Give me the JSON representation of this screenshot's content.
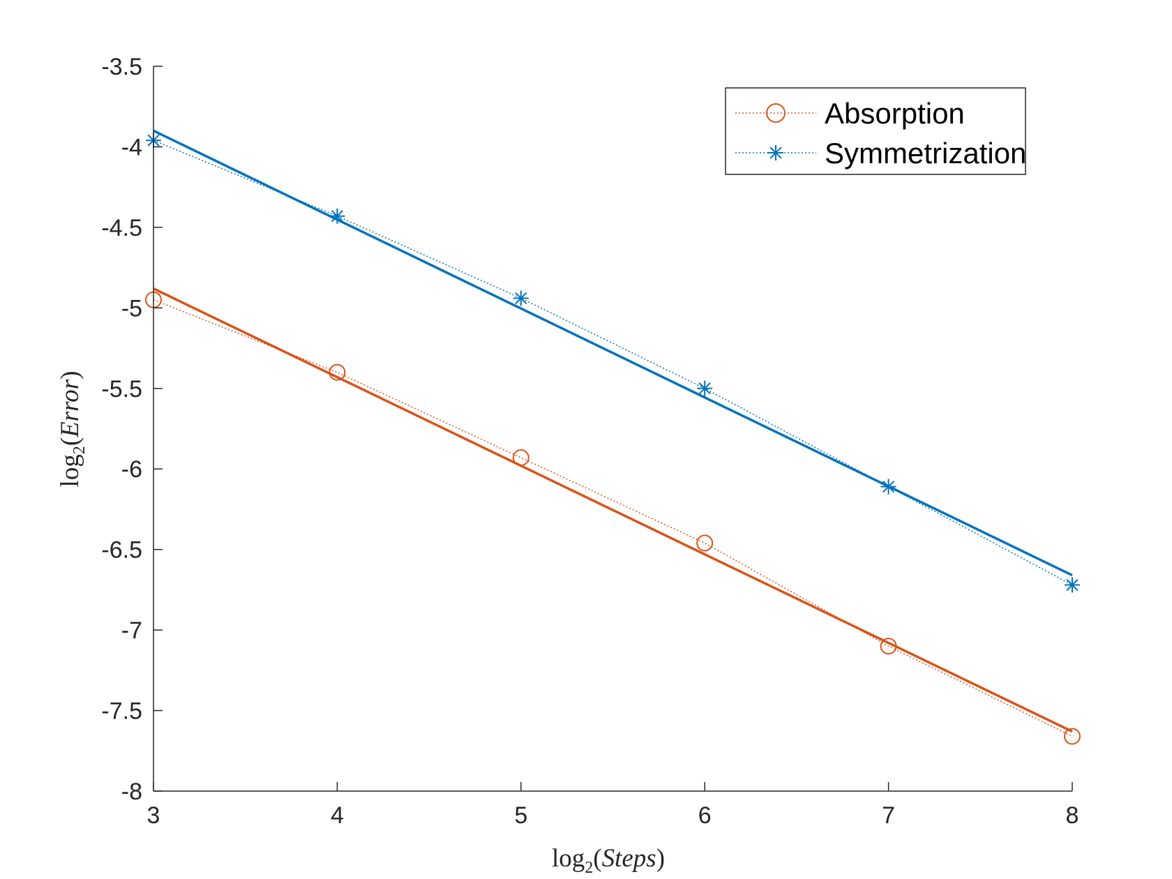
{
  "chart_data": {
    "type": "line",
    "title": "",
    "xlabel": "log2(Steps)",
    "ylabel": "log2(Error)",
    "xlabel_parts": {
      "fn": "log",
      "sub": "2",
      "arg": "Steps"
    },
    "ylabel_parts": {
      "fn": "log",
      "sub": "2",
      "arg": "Error"
    },
    "xlim": [
      3,
      8
    ],
    "ylim": [
      -8,
      -3.5
    ],
    "xticks": [
      3,
      4,
      5,
      6,
      7,
      8
    ],
    "xtick_labels": [
      "3",
      "4",
      "5",
      "6",
      "7",
      "8"
    ],
    "yticks": [
      -8,
      -7.5,
      -7,
      -6.5,
      -6,
      -5.5,
      -5,
      -4.5,
      -4,
      -3.5
    ],
    "ytick_labels": [
      "-8",
      "-7.5",
      "-7",
      "-6.5",
      "-6",
      "-5.5",
      "-5",
      "-4.5",
      "-4",
      "-3.5"
    ],
    "grid": false,
    "legend_position": "top-right",
    "x": [
      3,
      4,
      5,
      6,
      7,
      8
    ],
    "series": [
      {
        "name": "Absorption",
        "color": "#D95319",
        "marker": "circle",
        "line_style": "dotted",
        "values": [
          -4.95,
          -5.4,
          -5.93,
          -6.46,
          -7.1,
          -7.66
        ],
        "fit": {
          "x": [
            3,
            8
          ],
          "y": [
            -4.88,
            -7.63
          ]
        }
      },
      {
        "name": "Symmetrization",
        "color": "#0072BD",
        "marker": "asterisk",
        "line_style": "dotted",
        "values": [
          -3.96,
          -4.43,
          -4.94,
          -5.5,
          -6.11,
          -6.72
        ],
        "fit": {
          "x": [
            3,
            8
          ],
          "y": [
            -3.9,
            -6.66
          ]
        }
      }
    ]
  }
}
